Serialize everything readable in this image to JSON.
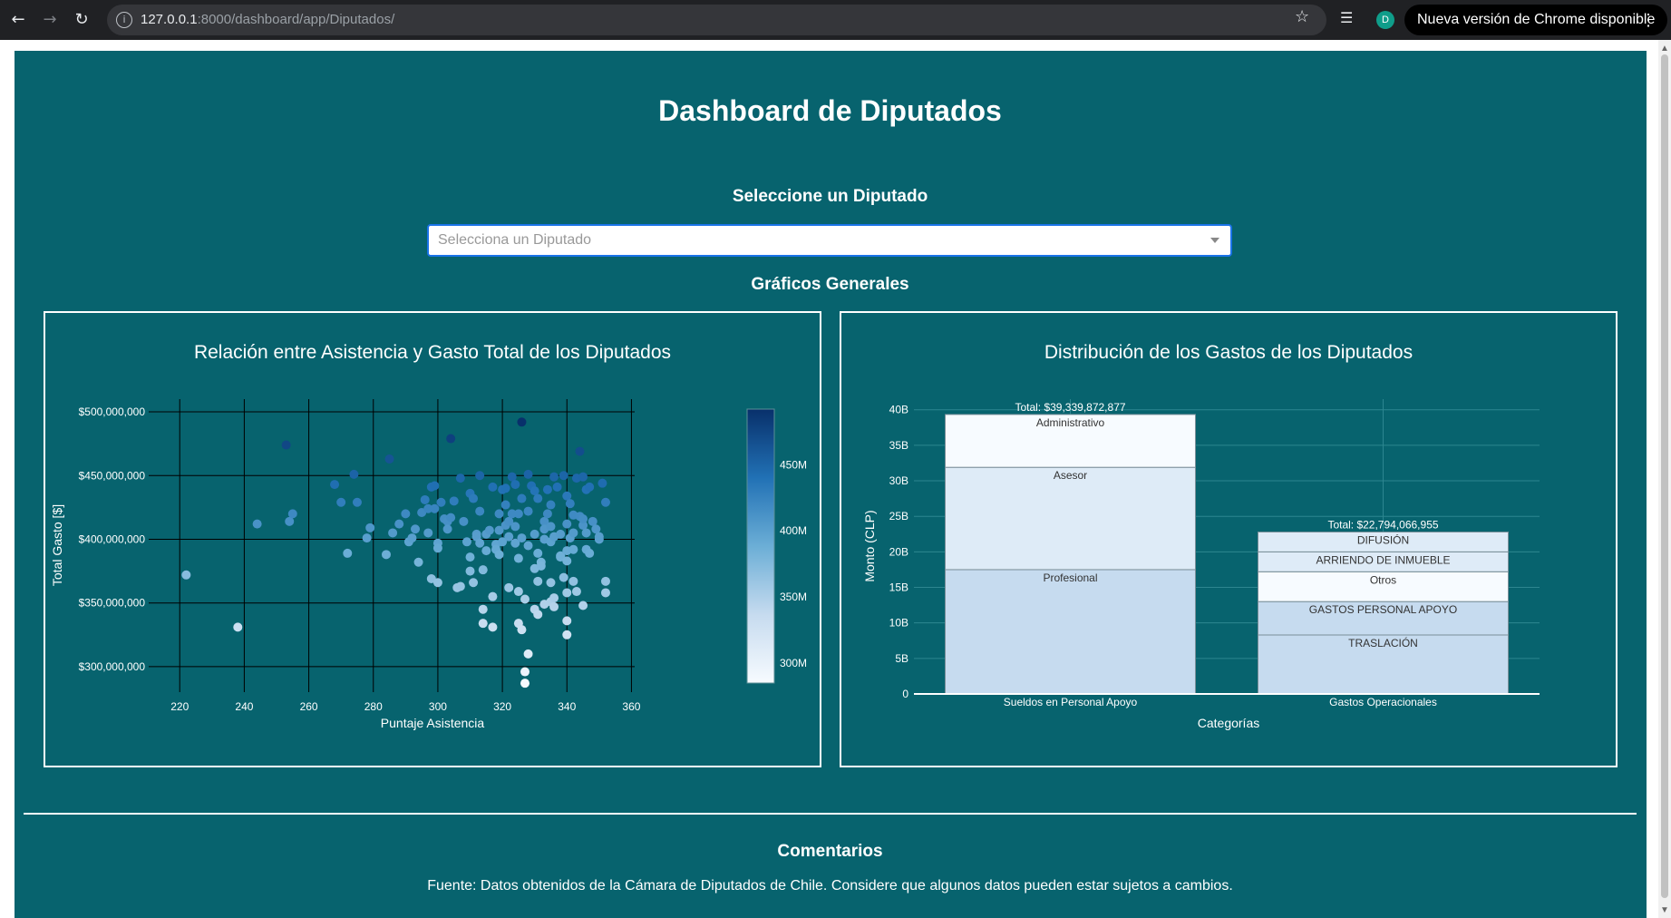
{
  "browser": {
    "url_host": "127.0.0.1",
    "url_rest": ":8000/dashboard/app/Diputados/",
    "update_label": "Nueva versión de Chrome disponible",
    "profile_initial": "D"
  },
  "page": {
    "title": "Dashboard de Diputados",
    "select_label": "Seleccione un Diputado",
    "dropdown_placeholder": "Selecciona un Diputado",
    "graphs_label": "Gráficos Generales",
    "comments_title": "Comentarios",
    "source_text": "Fuente: Datos obtenidos de la Cámara de Diputados de Chile. Considere que algunos datos pueden estar sujetos a cambios."
  },
  "colors": {
    "background": "#07636e",
    "colorscale": [
      "#f7fbff",
      "#c6dbef",
      "#6baed6",
      "#2171b5",
      "#08306b"
    ]
  },
  "chart_data": [
    {
      "type": "scatter",
      "title": "Relación entre Asistencia y Gasto Total de los Diputados",
      "xlabel": "Puntaje Asistencia",
      "ylabel": "Total Gasto [$]",
      "xlim": [
        216,
        361
      ],
      "ylim": [
        280000000,
        510000000
      ],
      "xticks": [
        220,
        240,
        260,
        280,
        300,
        320,
        340,
        360
      ],
      "xtick_labels": [
        "220",
        "240",
        "260",
        "280",
        "300",
        "320",
        "340",
        "360"
      ],
      "yticks": [
        300000000,
        350000000,
        400000000,
        450000000,
        500000000
      ],
      "ytick_labels": [
        "$300,000,000",
        "$350,000,000",
        "$400,000,000",
        "$450,000,000",
        "$500,000,000"
      ],
      "grid": true,
      "colorbar": {
        "range": [
          285000000,
          492000000
        ],
        "ticks": [
          300000000,
          350000000,
          400000000,
          450000000
        ],
        "tick_labels": [
          "300M",
          "350M",
          "400M",
          "450M"
        ]
      },
      "points": [
        [
          222,
          372
        ],
        [
          238,
          331
        ],
        [
          244,
          412
        ],
        [
          253,
          474
        ],
        [
          254,
          414
        ],
        [
          255,
          420
        ],
        [
          268,
          443
        ],
        [
          270,
          429
        ],
        [
          272,
          389
        ],
        [
          274,
          451
        ],
        [
          275,
          429
        ],
        [
          278,
          401
        ],
        [
          279,
          409
        ],
        [
          284,
          388
        ],
        [
          285,
          463
        ],
        [
          286,
          405
        ],
        [
          288,
          412
        ],
        [
          290,
          420
        ],
        [
          291,
          398
        ],
        [
          292,
          401
        ],
        [
          293,
          408
        ],
        [
          294,
          382
        ],
        [
          295,
          421
        ],
        [
          296,
          431
        ],
        [
          297,
          424
        ],
        [
          297,
          405
        ],
        [
          298,
          441
        ],
        [
          298,
          369
        ],
        [
          299,
          442
        ],
        [
          299,
          424
        ],
        [
          300,
          366
        ],
        [
          300,
          397
        ],
        [
          300,
          393
        ],
        [
          301,
          429
        ],
        [
          302,
          416
        ],
        [
          303,
          414
        ],
        [
          303,
          408
        ],
        [
          304,
          479
        ],
        [
          304,
          417
        ],
        [
          305,
          430
        ],
        [
          306,
          362
        ],
        [
          307,
          448
        ],
        [
          307,
          363
        ],
        [
          308,
          414
        ],
        [
          309,
          398
        ],
        [
          310,
          386
        ],
        [
          310,
          375
        ],
        [
          310,
          436
        ],
        [
          311,
          432
        ],
        [
          311,
          366
        ],
        [
          312,
          404
        ],
        [
          312,
          402
        ],
        [
          313,
          397
        ],
        [
          313,
          422
        ],
        [
          313,
          450
        ],
        [
          314,
          345
        ],
        [
          314,
          334
        ],
        [
          314,
          376
        ],
        [
          315,
          404
        ],
        [
          315,
          391
        ],
        [
          316,
          407
        ],
        [
          317,
          331
        ],
        [
          317,
          355
        ],
        [
          317,
          441
        ],
        [
          318,
          396
        ],
        [
          318,
          392
        ],
        [
          319,
          420
        ],
        [
          319,
          388
        ],
        [
          319,
          407
        ],
        [
          320,
          398
        ],
        [
          320,
          439
        ],
        [
          321,
          440
        ],
        [
          321,
          411
        ],
        [
          321,
          427
        ],
        [
          322,
          414
        ],
        [
          322,
          402
        ],
        [
          322,
          362
        ],
        [
          323,
          449
        ],
        [
          323,
          420
        ],
        [
          324,
          397
        ],
        [
          324,
          443
        ],
        [
          324,
          410
        ],
        [
          325,
          385
        ],
        [
          325,
          420
        ],
        [
          325,
          334
        ],
        [
          325,
          359
        ],
        [
          326,
          492
        ],
        [
          326,
          432
        ],
        [
          326,
          401
        ],
        [
          326,
          329
        ],
        [
          327,
          353
        ],
        [
          327,
          296
        ],
        [
          327,
          287
        ],
        [
          328,
          422
        ],
        [
          328,
          395
        ],
        [
          328,
          310
        ],
        [
          328,
          451
        ],
        [
          329,
          442
        ],
        [
          330,
          438
        ],
        [
          330,
          404
        ],
        [
          330,
          377
        ],
        [
          330,
          345
        ],
        [
          331,
          389
        ],
        [
          331,
          367
        ],
        [
          331,
          341
        ],
        [
          331,
          432
        ],
        [
          332,
          382
        ],
        [
          332,
          379
        ],
        [
          333,
          414
        ],
        [
          333,
          408
        ],
        [
          333,
          400
        ],
        [
          333,
          349
        ],
        [
          334,
          420
        ],
        [
          334,
          439
        ],
        [
          335,
          398
        ],
        [
          335,
          410
        ],
        [
          335,
          427
        ],
        [
          335,
          351
        ],
        [
          335,
          366
        ],
        [
          336,
          347
        ],
        [
          336,
          402
        ],
        [
          336,
          449
        ],
        [
          336,
          354
        ],
        [
          337,
          441
        ],
        [
          338,
          404
        ],
        [
          338,
          387
        ],
        [
          338,
          386
        ],
        [
          339,
          450
        ],
        [
          339,
          370
        ],
        [
          340,
          434
        ],
        [
          340,
          412
        ],
        [
          340,
          383
        ],
        [
          340,
          391
        ],
        [
          340,
          336
        ],
        [
          340,
          358
        ],
        [
          340,
          325
        ],
        [
          341,
          428
        ],
        [
          341,
          401
        ],
        [
          342,
          367
        ],
        [
          342,
          405
        ],
        [
          342,
          419
        ],
        [
          342,
          392
        ],
        [
          343,
          359
        ],
        [
          343,
          448
        ],
        [
          344,
          469
        ],
        [
          344,
          418
        ],
        [
          345,
          411
        ],
        [
          345,
          449
        ],
        [
          345,
          416
        ],
        [
          345,
          348
        ],
        [
          346,
          405
        ],
        [
          346,
          392
        ],
        [
          346,
          439
        ],
        [
          347,
          389
        ],
        [
          347,
          441
        ],
        [
          348,
          414
        ],
        [
          349,
          408
        ],
        [
          350,
          400
        ],
        [
          350,
          402
        ],
        [
          351,
          444
        ],
        [
          352,
          429
        ],
        [
          352,
          367
        ],
        [
          352,
          358
        ]
      ]
    },
    {
      "type": "bar",
      "stacked": true,
      "title": "Distribución de los Gastos de los Diputados",
      "xlabel": "Categorías",
      "ylabel": "Monto (CLP)",
      "ylim": [
        0,
        41500000000
      ],
      "yticks": [
        0,
        5000000000,
        10000000000,
        15000000000,
        20000000000,
        25000000000,
        30000000000,
        35000000000,
        40000000000
      ],
      "ytick_labels": [
        "0",
        "5B",
        "10B",
        "15B",
        "20B",
        "25B",
        "30B",
        "35B",
        "40B"
      ],
      "categories": [
        "Sueldos en Personal Apoyo",
        "Gastos Operacionales"
      ],
      "totals": [
        "Total: $39,339,872,877",
        "Total: $22,794,066,955"
      ],
      "stacks": [
        [
          {
            "name": "Profesional",
            "value": 17500000000,
            "color": "#c6dbef"
          },
          {
            "name": "Asesor",
            "value": 14400000000,
            "color": "#deebf7"
          },
          {
            "name": "Administrativo",
            "value": 7439872877,
            "color": "#f7fbff"
          }
        ],
        [
          {
            "name": "TRASLACIÓN",
            "value": 8300000000,
            "color": "#c6dbef"
          },
          {
            "name": "GASTOS PERSONAL APOYO",
            "value": 4700000000,
            "color": "#c6dbef"
          },
          {
            "name": "Otros",
            "value": 4200000000,
            "color": "#f7fbff"
          },
          {
            "name": "ARRIENDO DE INMUEBLE",
            "value": 2800000000,
            "color": "#deebf7"
          },
          {
            "name": "DIFUSIÓN",
            "value": 2794066955,
            "color": "#deebf7"
          }
        ]
      ]
    }
  ]
}
